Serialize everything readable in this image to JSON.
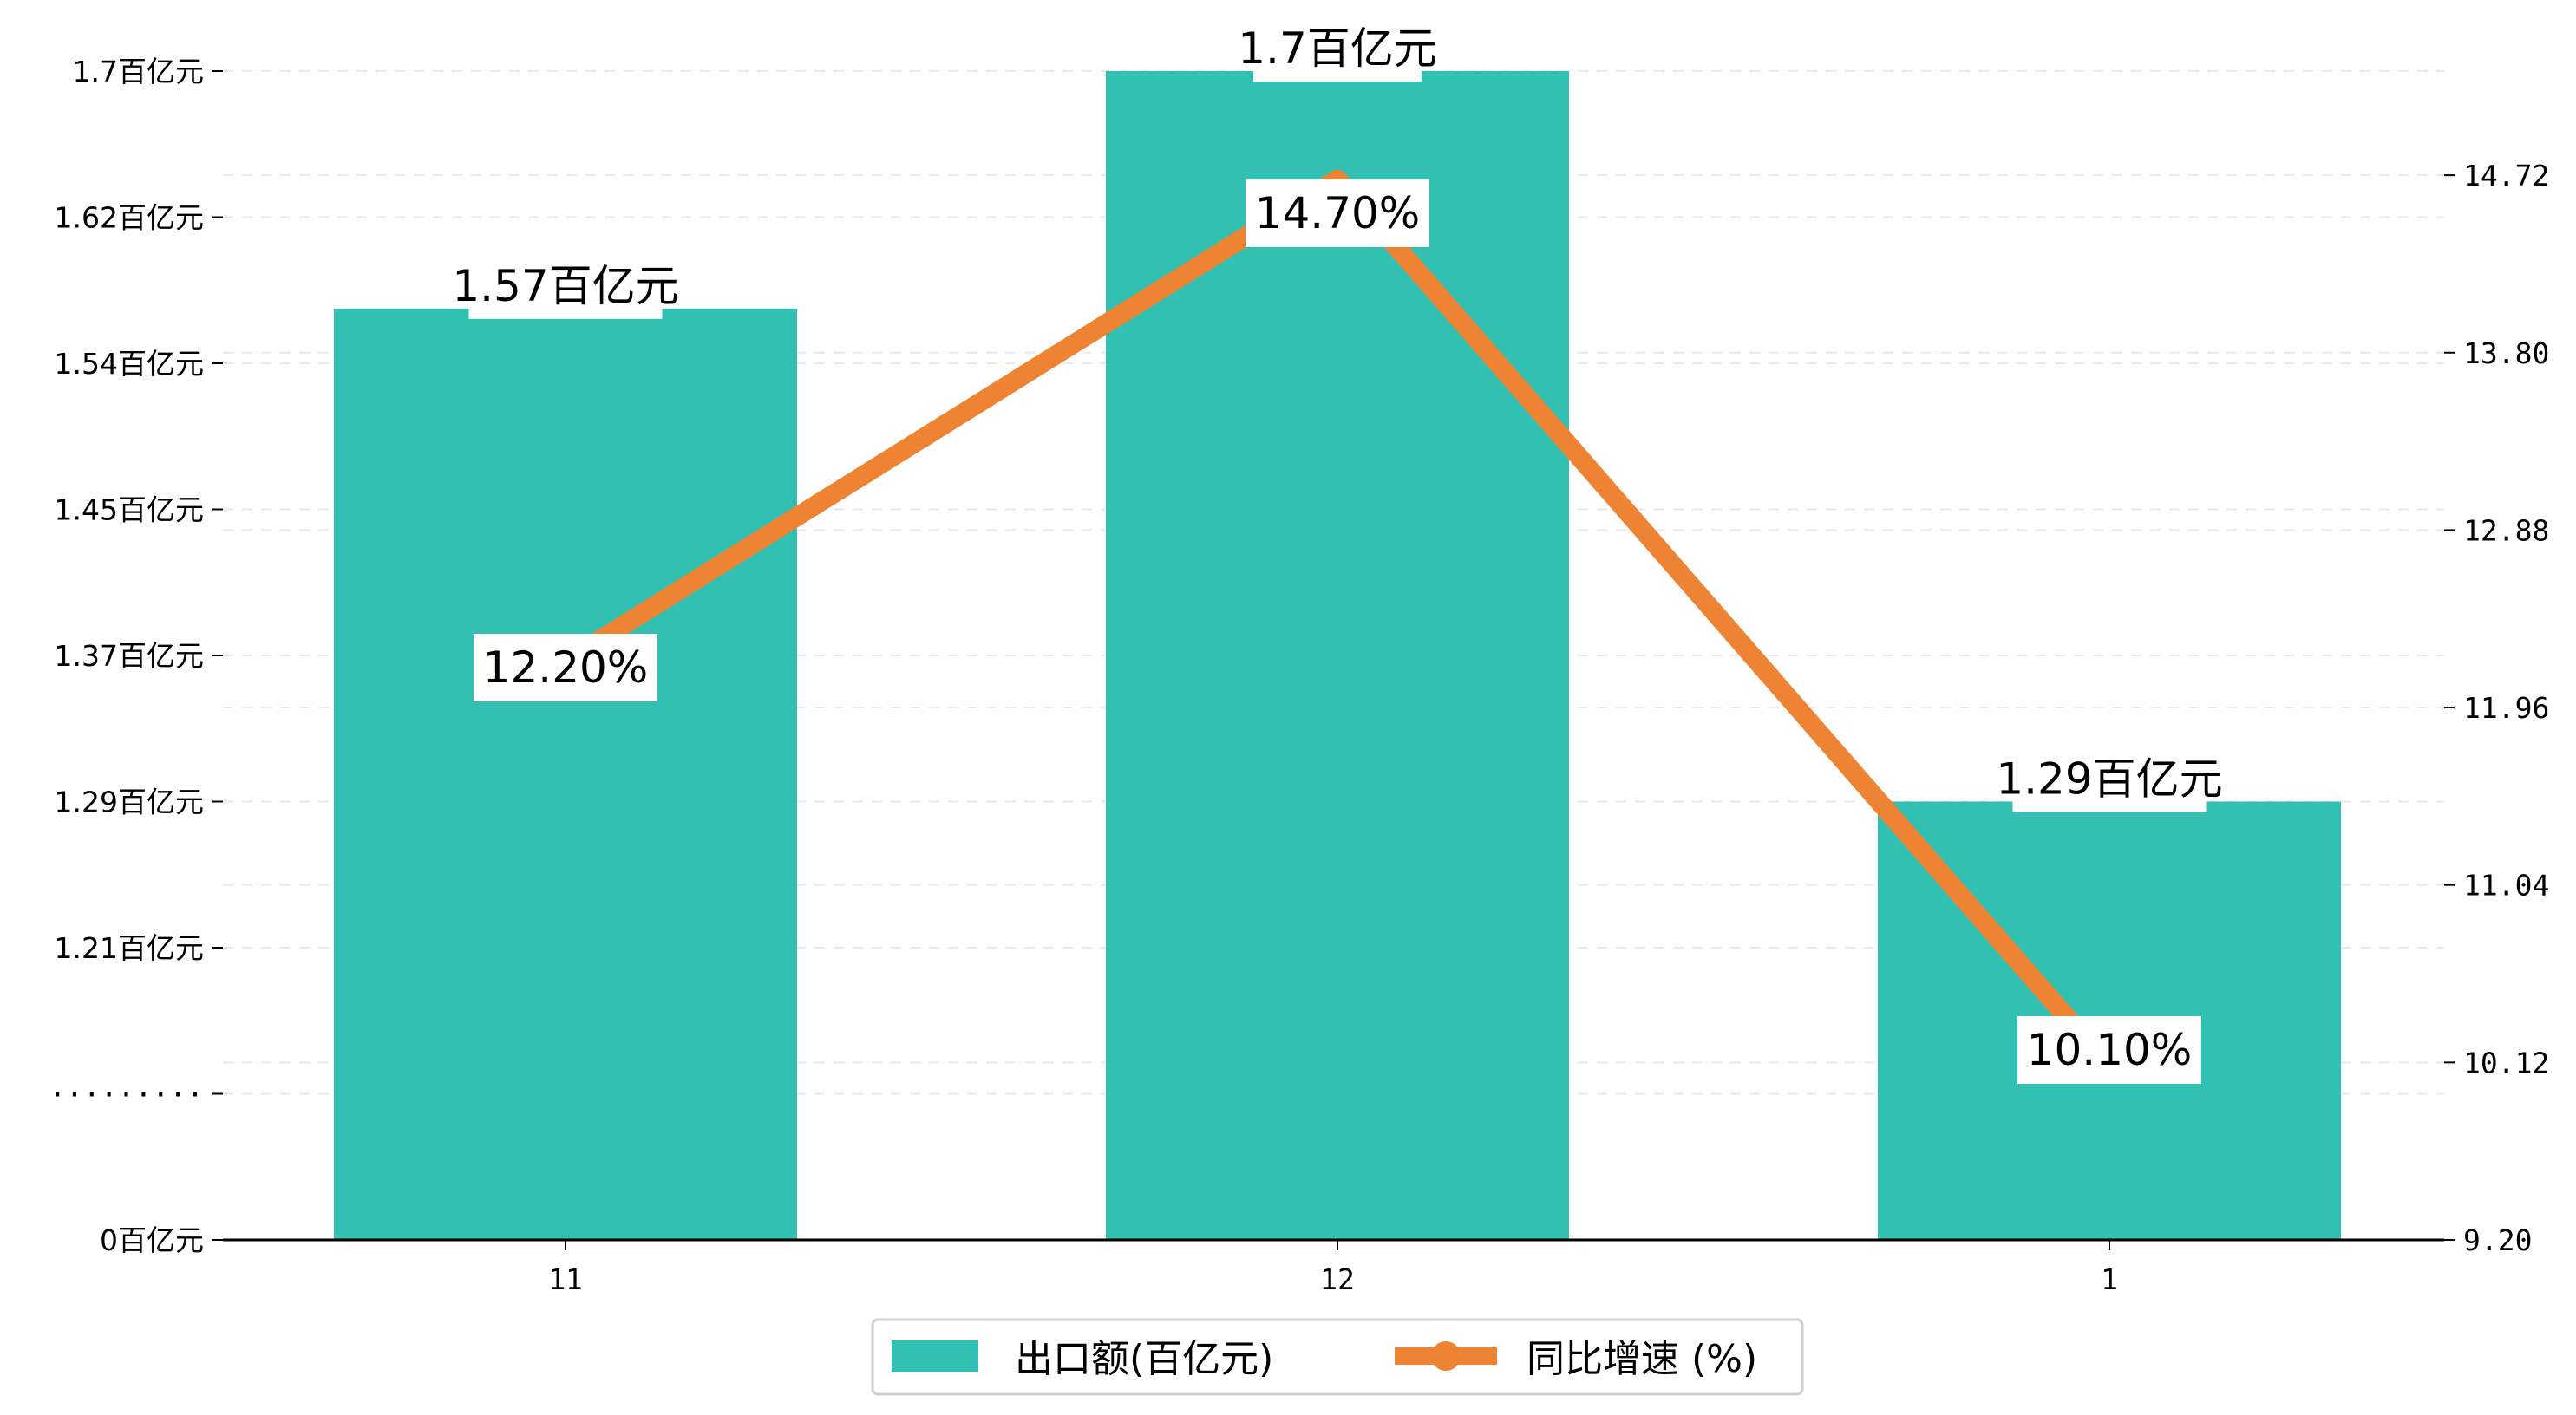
{
  "chart_data": {
    "type": "bar",
    "categories": [
      "11",
      "12",
      "1"
    ],
    "series": [
      {
        "name": "出口额(百亿元)",
        "kind": "bar",
        "axis": "left",
        "color": "#32c0b3",
        "values": [
          1.57,
          1.7,
          1.29
        ],
        "labels": [
          "1.57百亿元",
          "1.7百亿元",
          "1.29百亿元"
        ]
      },
      {
        "name": "同比增速 (%)",
        "kind": "line",
        "axis": "right",
        "color": "#ee8433",
        "values": [
          12.2,
          14.7,
          10.1
        ],
        "labels": [
          "12.20%",
          "14.70%",
          "10.10%"
        ]
      }
    ],
    "left_axis": {
      "ticks": [
        {
          "label": "0百亿元",
          "value": 0
        },
        {
          "label": "·········",
          "value": 1.13
        },
        {
          "label": "1.21百亿元",
          "value": 1.21
        },
        {
          "label": "1.29百亿元",
          "value": 1.29
        },
        {
          "label": "1.37百亿元",
          "value": 1.37
        },
        {
          "label": "1.45百亿元",
          "value": 1.45
        },
        {
          "label": "1.54百亿元",
          "value": 1.54
        },
        {
          "label": "1.62百亿元",
          "value": 1.62
        },
        {
          "label": "1.7百亿元",
          "value": 1.7
        }
      ],
      "broken": true
    },
    "right_axis": {
      "ylim": [
        9.2,
        15.26
      ],
      "ticks": [
        "9.20",
        "10.12",
        "11.04",
        "11.96",
        "12.88",
        "13.80",
        "14.72"
      ]
    },
    "grid": "horizontal dashed",
    "legend_position": "bottom-center"
  }
}
